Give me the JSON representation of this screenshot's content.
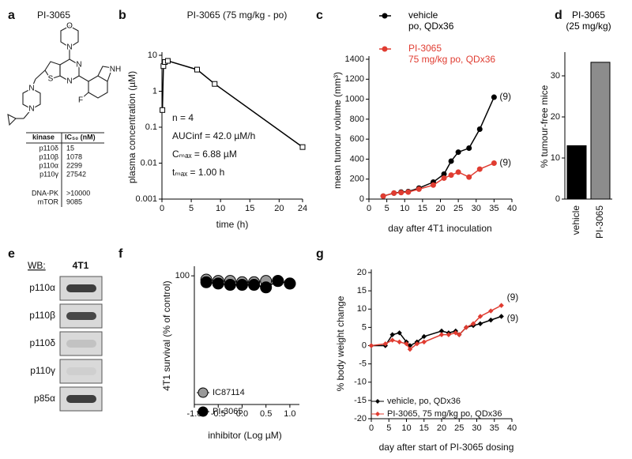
{
  "panel_labels": [
    "a",
    "b",
    "c",
    "d",
    "e",
    "f",
    "g"
  ],
  "structure": {
    "title": "PI-3065",
    "atoms": [
      "O",
      "N",
      "N",
      "N",
      "S",
      "N",
      "N",
      "NH",
      "F"
    ]
  },
  "table": {
    "header": [
      "kinase",
      "IC₅₀ (nM)"
    ],
    "rows": [
      [
        "p110δ",
        "15"
      ],
      [
        "p110β",
        "1078"
      ],
      [
        "p110α",
        "2299"
      ],
      [
        "p110γ",
        "27542"
      ],
      [
        "DNA-PK",
        ">10000"
      ],
      [
        "mTOR",
        "9085"
      ]
    ]
  },
  "blot": {
    "label": "WB:",
    "cell_line": "4T1",
    "bands": [
      "p110α",
      "p110β",
      "p110δ",
      "p110γ",
      "p85α"
    ]
  },
  "chart_data": [
    {
      "type": "line",
      "title": "PI-3065 (75 mg/kg - po)",
      "xlabel": "time (h)",
      "ylabel": "plasma concentration (µM)",
      "x": [
        0.08,
        0.25,
        0.5,
        1,
        6,
        9,
        24
      ],
      "series": [
        {
          "color": "#000000",
          "values": [
            0.3,
            5,
            6.5,
            7,
            4,
            1.6,
            0.028
          ]
        }
      ],
      "xlim": [
        0,
        24
      ],
      "xticks": [
        0,
        5,
        10,
        15,
        20,
        24
      ],
      "ylim": [
        0.001,
        10
      ],
      "yticks": [
        0.001,
        0.01,
        0.1,
        1,
        10
      ],
      "log_y": true,
      "annotations": [
        "n = 4",
        "AUCinf = 42.0 µM/h",
        "Cₘₐₓ = 6.88  µM",
        "tₘₐₓ = 1.00 h"
      ]
    },
    {
      "type": "line",
      "xlabel": "day after 4T1 inoculation",
      "ylabel": "mean tumour volume (mm³)",
      "x": [
        4,
        7,
        9,
        11,
        14,
        18,
        21,
        23,
        25,
        28,
        31,
        35
      ],
      "series": [
        {
          "name": "vehicle\npo, QDx36",
          "color": "#000000",
          "values": [
            30,
            60,
            70,
            75,
            110,
            170,
            250,
            380,
            470,
            510,
            700,
            1020
          ]
        },
        {
          "name": "PI-3065\n75 mg/kg po, QDx36",
          "color": "#e03c31",
          "values": [
            30,
            60,
            65,
            70,
            100,
            140,
            210,
            240,
            270,
            220,
            300,
            360
          ]
        }
      ],
      "xlim": [
        0,
        40
      ],
      "xticks": [
        0,
        5,
        10,
        15,
        20,
        25,
        30,
        35,
        40
      ],
      "ylim": [
        0,
        1400
      ],
      "yticks": [
        0,
        200,
        400,
        600,
        800,
        1000,
        1200,
        1400
      ],
      "annotations": [
        "(9)",
        "(9)"
      ]
    },
    {
      "type": "bar",
      "title": "PI-3065\n(25 mg/kg)",
      "ylabel": "% tumour-free mice",
      "categories": [
        "vehicle",
        "PI-3065"
      ],
      "values": [
        13,
        33.3
      ],
      "colors": [
        "#000000",
        "#8c8c8c"
      ],
      "ylim": [
        0,
        35
      ],
      "yticks": [
        0,
        10,
        20,
        30
      ]
    },
    {
      "type": "line",
      "xlabel": "inhibitor (Log µM)",
      "ylabel": "4T1 survival (% of control)",
      "x": [
        -0.75,
        -0.5,
        -0.25,
        0,
        0.25,
        0.5,
        0.75,
        1.0
      ],
      "series": [
        {
          "name": "IC87114",
          "color": "#999999",
          "values": [
            97,
            96,
            96,
            95,
            95,
            96,
            96,
            94
          ]
        },
        {
          "name": "PI-3065",
          "color": "#000000",
          "values": [
            95,
            94,
            93,
            93,
            93,
            91,
            96,
            94
          ]
        }
      ],
      "xlim": [
        -1,
        1.2
      ],
      "xticks": [
        {
          "value": -1,
          "label": "-1.0"
        },
        -0.5,
        {
          "value": 0,
          "label": "0.0"
        },
        0.5,
        {
          "value": 1,
          "label": "1.0"
        }
      ],
      "ylim": [
        0,
        105
      ],
      "yticks": [
        100
      ]
    },
    {
      "type": "line",
      "xlabel": "day after start of PI-3065 dosing",
      "ylabel": "% body weight change",
      "x": [
        0,
        4,
        6,
        8,
        10,
        11,
        13,
        15,
        20,
        22,
        24,
        25,
        27,
        29,
        31,
        34,
        37
      ],
      "series": [
        {
          "name": "vehicle, po, QDx36",
          "color": "#000000",
          "values": [
            0,
            0,
            3,
            3.5,
            1,
            0,
            1,
            2.5,
            4,
            3.5,
            4,
            3,
            5,
            5.5,
            6,
            7,
            8
          ]
        },
        {
          "name": "PI-3065, 75 mg/kg po, QDx36",
          "color": "#e03c31",
          "values": [
            0,
            0.5,
            1.5,
            1,
            0.5,
            -1,
            0.5,
            1,
            3,
            3,
            3.5,
            3,
            5,
            6,
            8,
            9.5,
            11
          ]
        }
      ],
      "xlim": [
        0,
        40
      ],
      "xticks": [
        0,
        5,
        10,
        15,
        20,
        25,
        30,
        35,
        40
      ],
      "ylim": [
        -20,
        20
      ],
      "yticks": [
        -20,
        -15,
        -10,
        -5,
        0,
        5,
        10,
        15,
        20
      ],
      "annotations": [
        "(9)",
        "(9)"
      ]
    }
  ]
}
